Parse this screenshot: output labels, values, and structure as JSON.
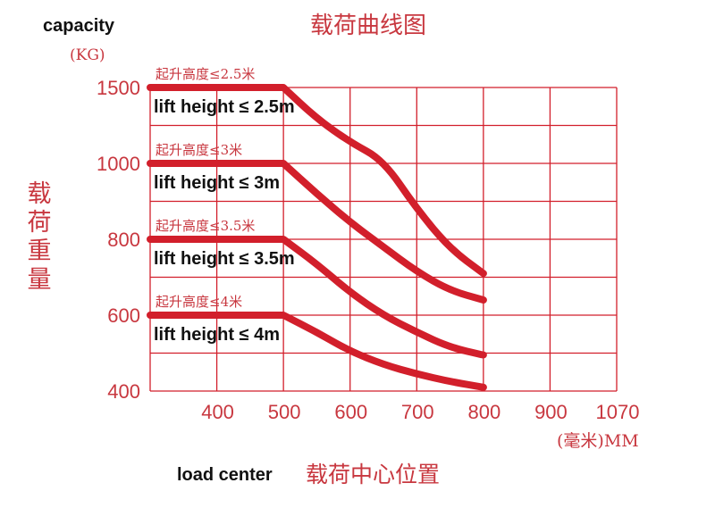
{
  "colors": {
    "accent": "#d21f2b",
    "text_red": "#c8373f",
    "text_dark": "#111111",
    "background": "#ffffff"
  },
  "chart_data": {
    "type": "line",
    "title": "载荷曲线图",
    "ylabel_en": "capacity",
    "ylabel_unit": "(KG)",
    "ylabel_cn": "载荷重量",
    "xlabel_en": "load center",
    "xlabel_cn": "载荷中心位置",
    "xlabel_unit": "(毫米)MM",
    "x_ticks": [
      "400",
      "500",
      "600",
      "700",
      "800",
      "900",
      "1070"
    ],
    "y_ticks": [
      "1500",
      "1000",
      "800",
      "600",
      "400"
    ],
    "grid": true,
    "series": [
      {
        "name": "lift height ≤ 2.5m",
        "name_cn": "起升高度≤2.5米",
        "points": [
          [
            300,
            1500
          ],
          [
            500,
            1500
          ],
          [
            550,
            1295
          ],
          [
            600,
            1140
          ],
          [
            650,
            1020
          ],
          [
            700,
            880
          ],
          [
            750,
            775
          ],
          [
            800,
            710
          ]
        ]
      },
      {
        "name": "lift height ≤ 3m",
        "name_cn": "起升高度≤3米",
        "points": [
          [
            300,
            1000
          ],
          [
            500,
            1000
          ],
          [
            550,
            920
          ],
          [
            600,
            845
          ],
          [
            650,
            780
          ],
          [
            700,
            715
          ],
          [
            750,
            665
          ],
          [
            800,
            640
          ]
        ]
      },
      {
        "name": "lift height ≤ 3.5m",
        "name_cn": "起升高度≤3.5米",
        "points": [
          [
            300,
            800
          ],
          [
            500,
            800
          ],
          [
            550,
            735
          ],
          [
            600,
            660
          ],
          [
            650,
            600
          ],
          [
            700,
            555
          ],
          [
            750,
            515
          ],
          [
            800,
            495
          ]
        ]
      },
      {
        "name": "lift height ≤ 4m",
        "name_cn": "起升高度≤4米",
        "points": [
          [
            300,
            600
          ],
          [
            500,
            600
          ],
          [
            550,
            555
          ],
          [
            600,
            505
          ],
          [
            650,
            470
          ],
          [
            700,
            445
          ],
          [
            750,
            425
          ],
          [
            800,
            410
          ]
        ]
      }
    ]
  }
}
